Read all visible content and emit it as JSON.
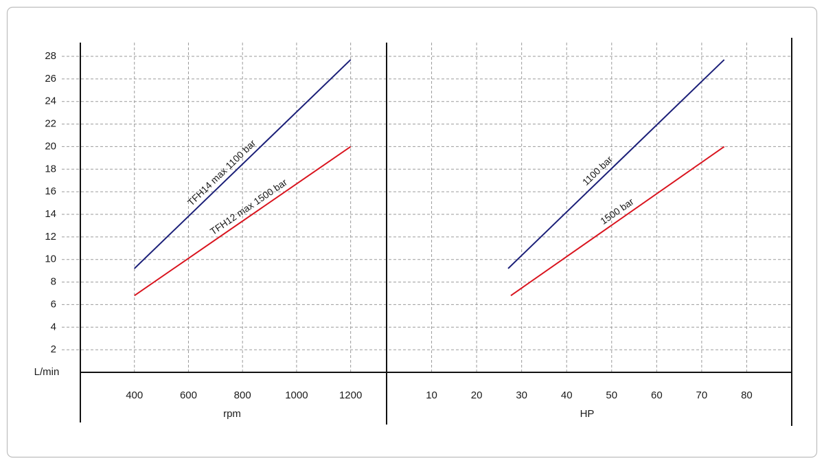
{
  "chart_data": [
    {
      "type": "line",
      "ylabel": "L/min",
      "xlabel": "rpm",
      "xlim": [
        200,
        1333
      ],
      "xticks": [
        400,
        600,
        800,
        1000,
        1200
      ],
      "ylim": [
        0,
        28
      ],
      "yticks": [
        2,
        4,
        6,
        8,
        10,
        12,
        14,
        16,
        18,
        20,
        22,
        24,
        26,
        28
      ],
      "grid": true,
      "series": [
        {
          "name": "TFH14 max 1100 bar",
          "color": "#1b1f78",
          "x": [
            400,
            1200
          ],
          "values": [
            9.2,
            27.7
          ]
        },
        {
          "name": "TFH12 max 1500 bar",
          "color": "#d9141e",
          "x": [
            400,
            1200
          ],
          "values": [
            6.8,
            20
          ]
        }
      ]
    },
    {
      "type": "line",
      "xlabel": "HP",
      "xlim": [
        0,
        90
      ],
      "xticks": [
        10,
        20,
        30,
        40,
        50,
        60,
        70,
        80
      ],
      "ylim": [
        0,
        28
      ],
      "grid": true,
      "series": [
        {
          "name": "1100 bar",
          "color": "#1b1f78",
          "x": [
            27,
            75
          ],
          "values": [
            9.2,
            27.7
          ]
        },
        {
          "name": "1500 bar",
          "color": "#d9141e",
          "x": [
            27.6,
            75
          ],
          "values": [
            6.8,
            20
          ]
        }
      ]
    }
  ]
}
